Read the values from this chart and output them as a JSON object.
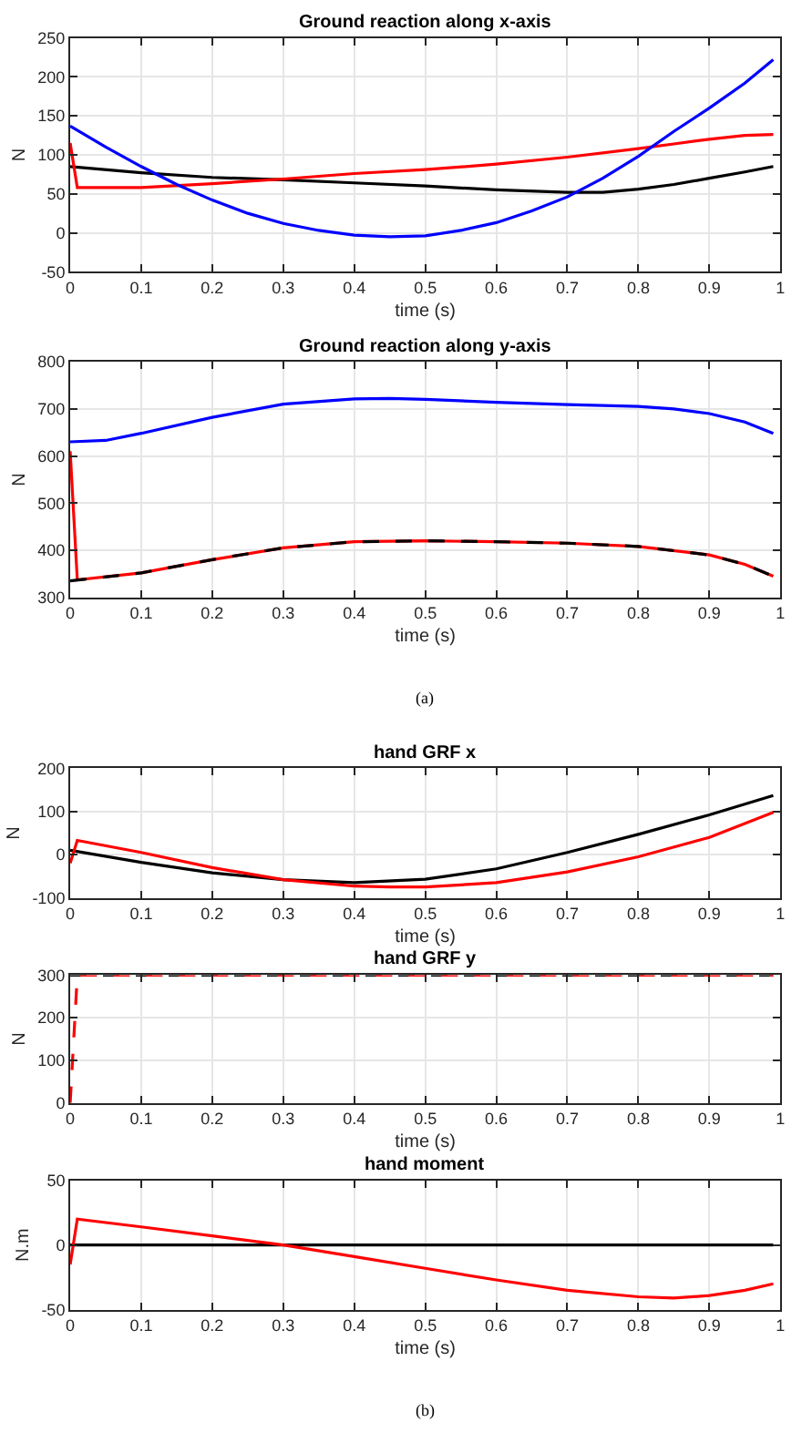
{
  "chart_data": [
    {
      "type": "line",
      "title": "Ground reaction along x-axis",
      "xlabel": "time (s)",
      "ylabel": "N",
      "xlim": [
        0,
        1
      ],
      "ylim": [
        -50,
        250
      ],
      "xticks": [
        0,
        0.1,
        0.2,
        0.3,
        0.4,
        0.5,
        0.6,
        0.7,
        0.8,
        0.9,
        1
      ],
      "yticks": [
        -50,
        0,
        50,
        100,
        150,
        200,
        250
      ],
      "grid": true,
      "series": [
        {
          "color": "#000000",
          "line_style": "solid",
          "x": [
            0,
            0.1,
            0.2,
            0.3,
            0.4,
            0.5,
            0.6,
            0.7,
            0.75,
            0.8,
            0.85,
            0.9,
            0.95,
            0.99
          ],
          "values": [
            85,
            77,
            71,
            68,
            64,
            60,
            55,
            52,
            52,
            56,
            62,
            70,
            78,
            85
          ]
        },
        {
          "color": "#ff0000",
          "line_style": "solid",
          "x": [
            0,
            0.01,
            0.1,
            0.2,
            0.3,
            0.4,
            0.5,
            0.6,
            0.7,
            0.8,
            0.85,
            0.9,
            0.95,
            0.99
          ],
          "values": [
            115,
            58,
            58,
            63,
            69,
            76,
            81,
            88,
            97,
            108,
            114,
            120,
            125,
            126
          ]
        },
        {
          "color": "#0000ff",
          "line_style": "solid",
          "x": [
            0,
            0.05,
            0.1,
            0.15,
            0.2,
            0.25,
            0.3,
            0.35,
            0.4,
            0.45,
            0.5,
            0.55,
            0.6,
            0.65,
            0.7,
            0.75,
            0.8,
            0.85,
            0.9,
            0.95,
            0.99
          ],
          "values": [
            137,
            110,
            85,
            62,
            42,
            25,
            12,
            3,
            -3,
            -5,
            -4,
            3,
            13,
            28,
            46,
            70,
            98,
            130,
            160,
            192,
            222
          ]
        }
      ]
    },
    {
      "type": "line",
      "title": "Ground reaction along y-axis",
      "xlabel": "time (s)",
      "ylabel": "N",
      "xlim": [
        0,
        1
      ],
      "ylim": [
        300,
        800
      ],
      "xticks": [
        0,
        0.1,
        0.2,
        0.3,
        0.4,
        0.5,
        0.6,
        0.7,
        0.8,
        0.9,
        1
      ],
      "yticks": [
        300,
        400,
        500,
        600,
        700,
        800
      ],
      "grid": true,
      "annotations": [
        "(a)"
      ],
      "series": [
        {
          "color": "#0000ff",
          "line_style": "solid",
          "x": [
            0,
            0.05,
            0.1,
            0.2,
            0.3,
            0.4,
            0.45,
            0.5,
            0.6,
            0.7,
            0.8,
            0.85,
            0.9,
            0.95,
            0.99
          ],
          "values": [
            630,
            633,
            648,
            682,
            710,
            721,
            722,
            720,
            714,
            709,
            705,
            700,
            690,
            672,
            648
          ]
        },
        {
          "color": "#ff0000",
          "line_style": "solid",
          "x": [
            0,
            0.01,
            0.1,
            0.2,
            0.3,
            0.4,
            0.5,
            0.6,
            0.7,
            0.8,
            0.9,
            0.95,
            0.99
          ],
          "values": [
            610,
            337,
            352,
            380,
            405,
            418,
            420,
            418,
            415,
            408,
            390,
            370,
            345
          ]
        },
        {
          "color": "#000000",
          "line_style": "dashed",
          "x": [
            0,
            0.1,
            0.2,
            0.3,
            0.4,
            0.5,
            0.6,
            0.7,
            0.8,
            0.9,
            0.95,
            0.99
          ],
          "values": [
            335,
            352,
            380,
            405,
            418,
            420,
            418,
            415,
            408,
            390,
            370,
            345
          ]
        }
      ]
    },
    {
      "type": "line",
      "title": "hand GRF x",
      "xlabel": "time (s)",
      "ylabel": "N",
      "xlim": [
        0,
        1
      ],
      "ylim": [
        -100,
        200
      ],
      "xticks": [
        0,
        0.1,
        0.2,
        0.3,
        0.4,
        0.5,
        0.6,
        0.7,
        0.8,
        0.9,
        1
      ],
      "yticks": [
        -100,
        0,
        100,
        200
      ],
      "grid": true,
      "series": [
        {
          "color": "#000000",
          "line_style": "solid",
          "x": [
            0,
            0.1,
            0.2,
            0.3,
            0.4,
            0.5,
            0.6,
            0.7,
            0.8,
            0.9,
            0.99
          ],
          "values": [
            10,
            -18,
            -42,
            -58,
            -65,
            -57,
            -33,
            5,
            47,
            92,
            137
          ]
        },
        {
          "color": "#ff0000",
          "line_style": "solid",
          "x": [
            0,
            0.01,
            0.1,
            0.2,
            0.3,
            0.4,
            0.45,
            0.5,
            0.6,
            0.7,
            0.8,
            0.9,
            0.99
          ],
          "values": [
            -20,
            33,
            5,
            -30,
            -58,
            -73,
            -75,
            -75,
            -65,
            -40,
            -5,
            40,
            98
          ]
        }
      ]
    },
    {
      "type": "line",
      "title": "hand GRF y",
      "xlabel": "time (s)",
      "ylabel": "N",
      "xlim": [
        0,
        1
      ],
      "ylim": [
        0,
        300
      ],
      "xticks": [
        0,
        0.1,
        0.2,
        0.3,
        0.4,
        0.5,
        0.6,
        0.7,
        0.8,
        0.9,
        1
      ],
      "yticks": [
        0,
        100,
        200,
        300
      ],
      "grid": true,
      "series": [
        {
          "color": "#000000",
          "line_style": "dashed",
          "x": [
            0,
            0.99
          ],
          "values": [
            300,
            300
          ]
        },
        {
          "color": "#ff0000",
          "line_style": "dashed",
          "x": [
            0,
            0.005,
            0.01,
            0.99
          ],
          "values": [
            0,
            150,
            300,
            300
          ]
        }
      ]
    },
    {
      "type": "line",
      "title": "hand moment",
      "xlabel": "time (s)",
      "ylabel": "N.m",
      "xlim": [
        0,
        1
      ],
      "ylim": [
        -50,
        50
      ],
      "xticks": [
        0,
        0.1,
        0.2,
        0.3,
        0.4,
        0.5,
        0.6,
        0.7,
        0.8,
        0.9,
        1
      ],
      "yticks": [
        -50,
        0,
        50
      ],
      "grid": true,
      "annotations": [
        "(b)"
      ],
      "series": [
        {
          "color": "#000000",
          "line_style": "solid",
          "x": [
            0,
            0.99
          ],
          "values": [
            0,
            0
          ]
        },
        {
          "color": "#ff0000",
          "line_style": "solid",
          "x": [
            0,
            0.01,
            0.1,
            0.2,
            0.3,
            0.4,
            0.5,
            0.6,
            0.7,
            0.8,
            0.85,
            0.9,
            0.95,
            0.99
          ],
          "values": [
            -15,
            20,
            14,
            7,
            0,
            -9,
            -18,
            -27,
            -35,
            -40,
            -41,
            -39,
            -35,
            -30
          ]
        }
      ]
    }
  ]
}
